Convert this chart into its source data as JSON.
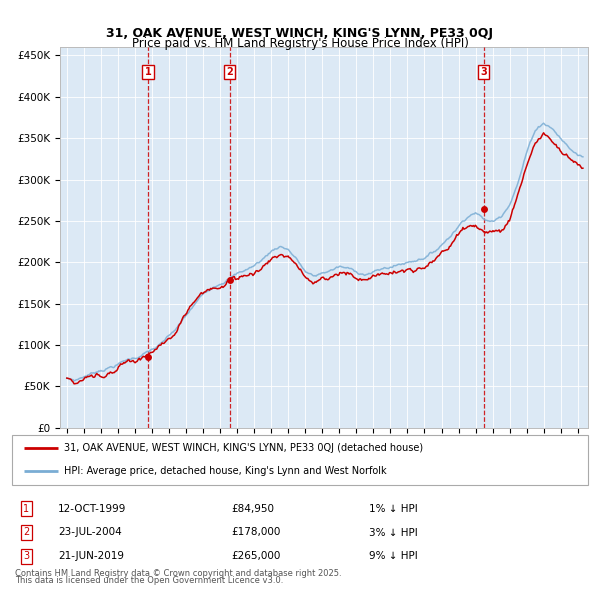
{
  "title": "31, OAK AVENUE, WEST WINCH, KING'S LYNN, PE33 0QJ",
  "subtitle": "Price paid vs. HM Land Registry's House Price Index (HPI)",
  "background_color": "#dce9f5",
  "plot_bg_color": "#dce9f5",
  "outer_bg_color": "#ffffff",
  "red_line_color": "#cc0000",
  "blue_line_color": "#7aadd4",
  "sale_marker_color": "#cc0000",
  "vline_color": "#cc0000",
  "ylim": [
    0,
    460000
  ],
  "yticks": [
    0,
    50000,
    100000,
    150000,
    200000,
    250000,
    300000,
    350000,
    400000,
    450000
  ],
  "ytick_labels": [
    "£0",
    "£50K",
    "£100K",
    "£150K",
    "£200K",
    "£250K",
    "£300K",
    "£350K",
    "£400K",
    "£450K"
  ],
  "sales": [
    {
      "label": "1",
      "date": "12-OCT-1999",
      "year": 1999.78,
      "price": 84950,
      "pct": "1%",
      "direction": "↓"
    },
    {
      "label": "2",
      "date": "23-JUL-2004",
      "year": 2004.56,
      "price": 178000,
      "pct": "3%",
      "direction": "↓"
    },
    {
      "label": "3",
      "date": "21-JUN-2019",
      "year": 2019.47,
      "price": 265000,
      "pct": "9%",
      "direction": "↓"
    }
  ],
  "legend_line1": "31, OAK AVENUE, WEST WINCH, KING'S LYNN, PE33 0QJ (detached house)",
  "legend_line2": "HPI: Average price, detached house, King's Lynn and West Norfolk",
  "footnote1": "Contains HM Land Registry data © Crown copyright and database right 2025.",
  "footnote2": "This data is licensed under the Open Government Licence v3.0.",
  "xtick_start": 1995,
  "xtick_end": 2026
}
